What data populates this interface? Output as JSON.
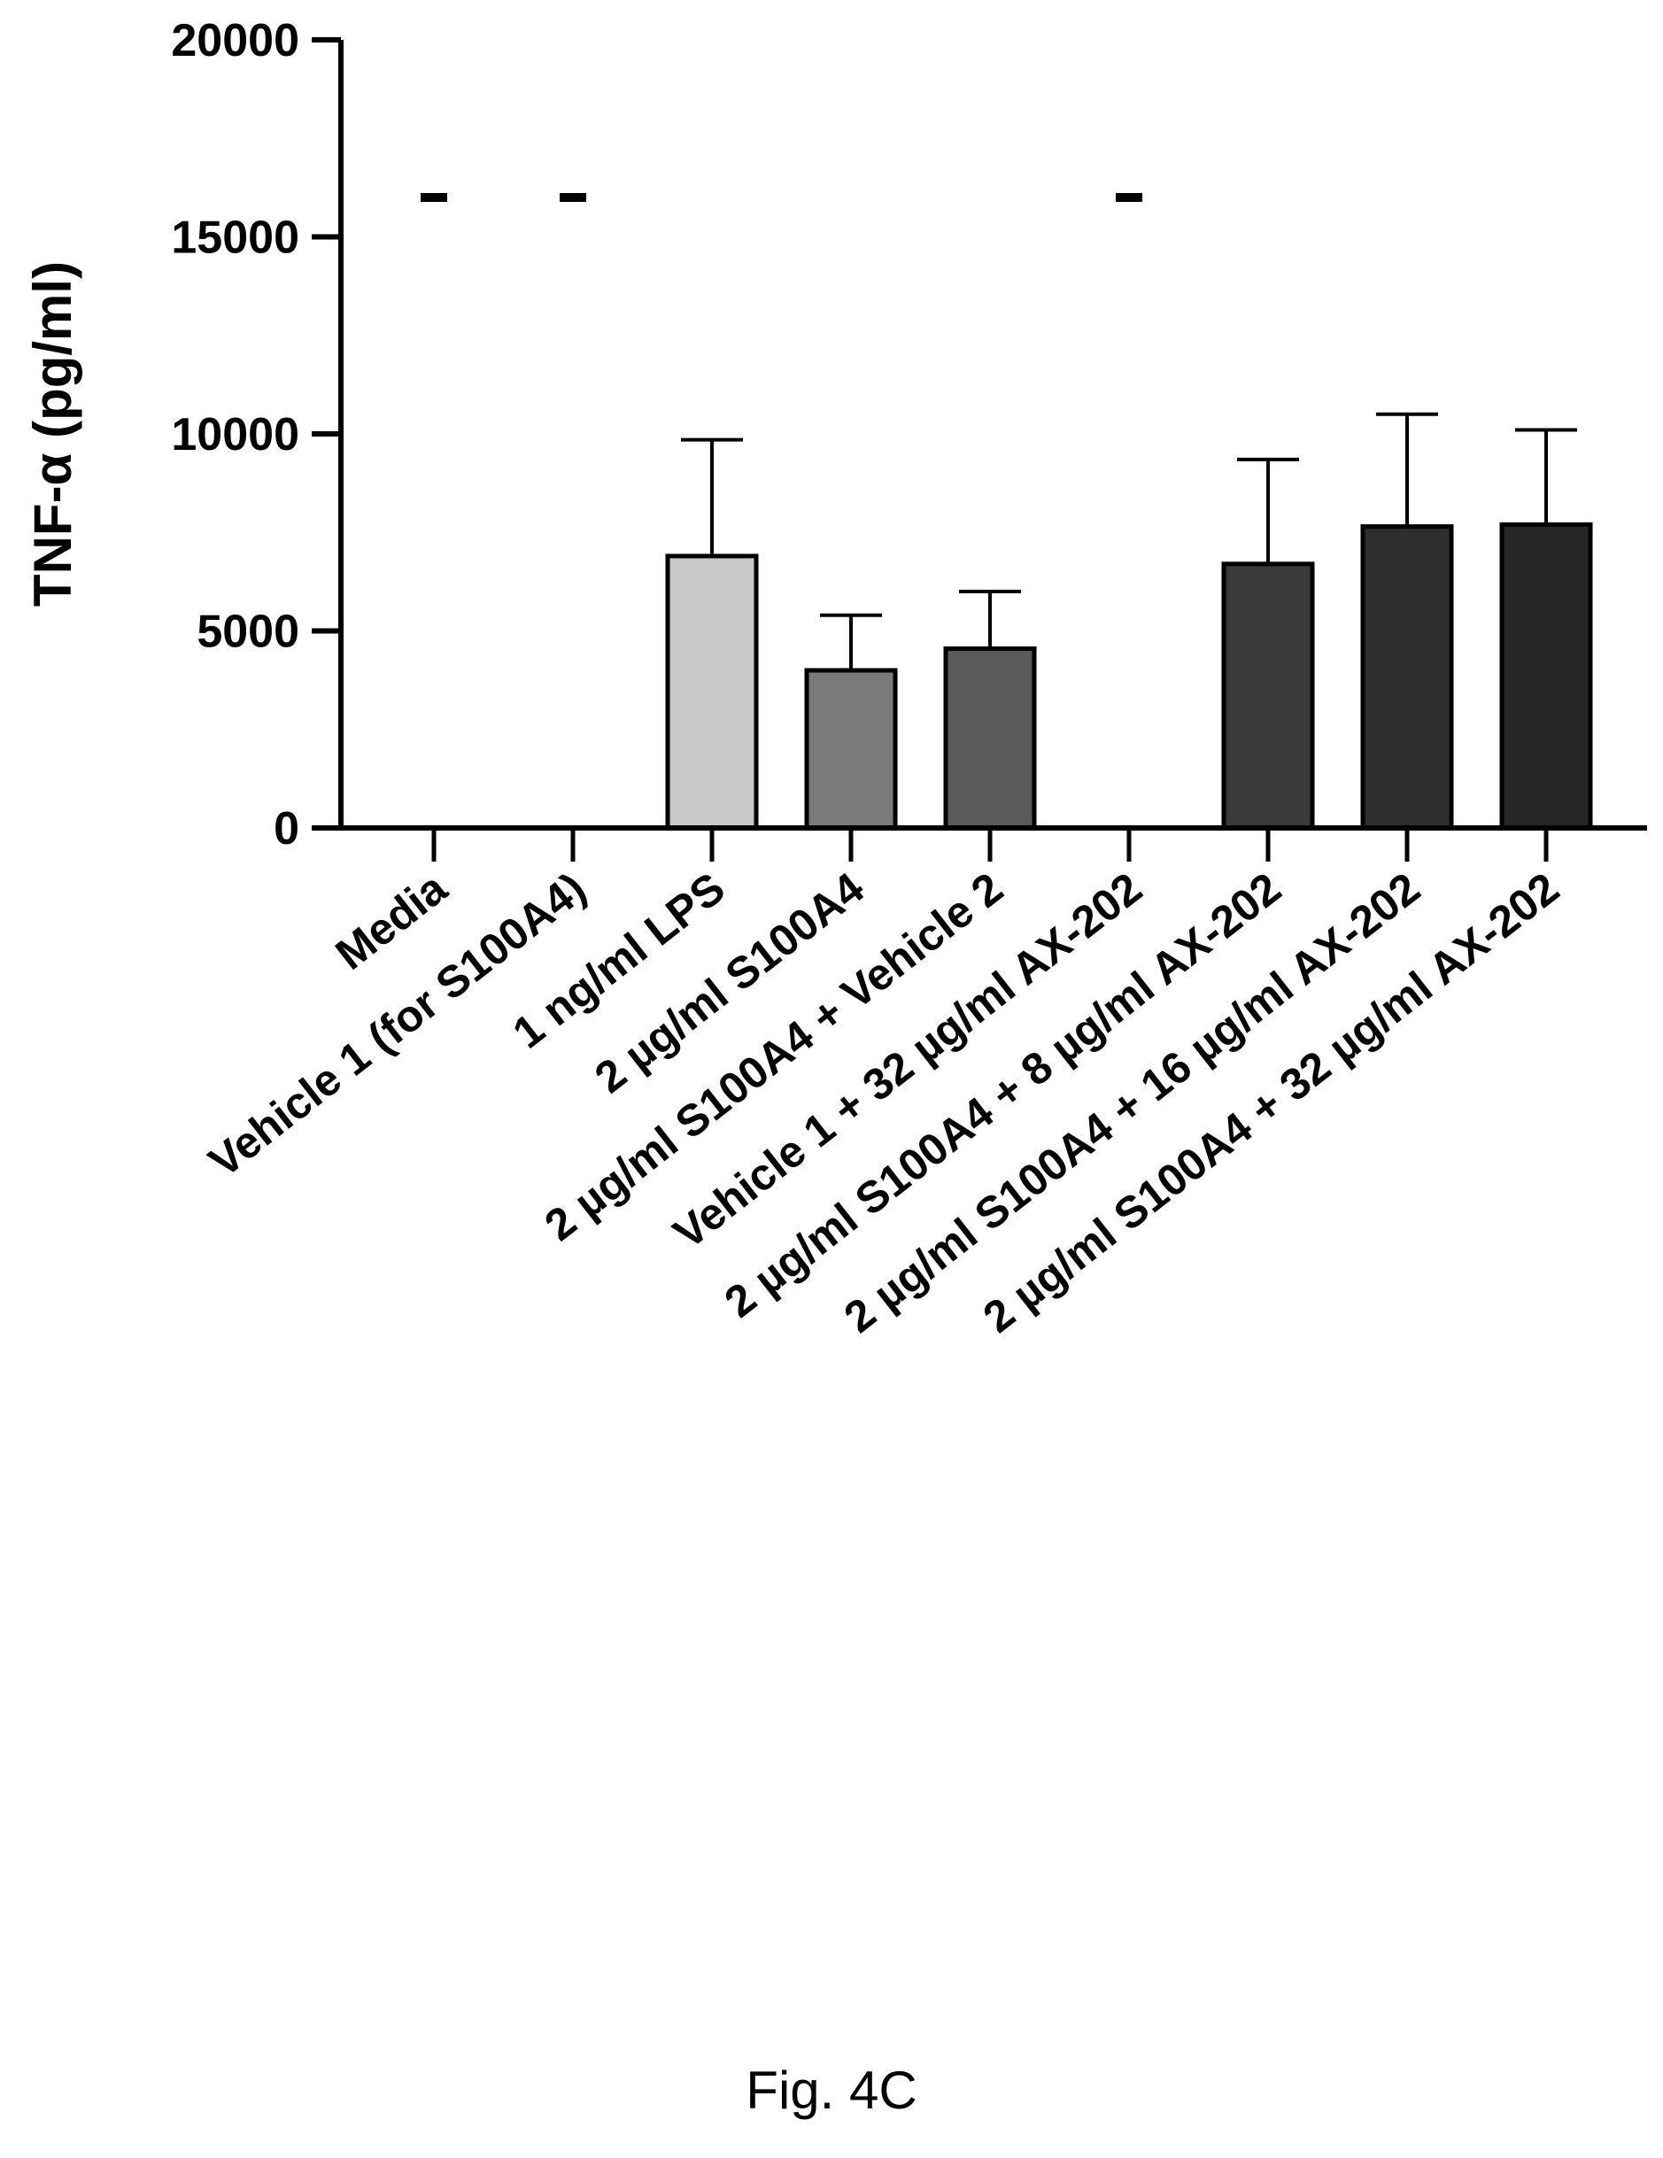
{
  "figure_caption": "Fig. 4C",
  "chart_data": {
    "type": "bar",
    "ylabel": "TNF-α (pg/ml)",
    "xlabel": "",
    "ylim": [
      0,
      20000
    ],
    "yticks": [
      0,
      5000,
      10000,
      15000,
      20000
    ],
    "grid": false,
    "categories": [
      "Media",
      "Vehicle 1 (for S100A4)",
      "1 ng/ml LPS",
      "2 µg/ml S100A4",
      "2 µg/ml S100A4 + Vehicle 2",
      "Vehicle 1 + 32 µg/ml AX-202",
      "2 µg/ml S100A4 + 8 µg/ml AX-202",
      "2 µg/ml S100A4 + 16 µg/ml AX-202",
      "2 µg/ml S100A4 + 32 µg/ml AX-202"
    ],
    "values": [
      0,
      0,
      6900,
      4000,
      4550,
      0,
      6700,
      7650,
      7700
    ],
    "error_upper": [
      0,
      0,
      2950,
      1400,
      1450,
      0,
      2650,
      2850,
      2400
    ],
    "markers": [
      "-",
      "-",
      "",
      "",
      "",
      "-",
      "",
      "",
      ""
    ],
    "marker_value": 16000,
    "bar_colors": [
      "#ffffff",
      "#ffffff",
      "#c8c8c8",
      "#7a7a7a",
      "#5a5a5a",
      "#ffffff",
      "#3a3a3a",
      "#2e2e2e",
      "#262626"
    ]
  }
}
